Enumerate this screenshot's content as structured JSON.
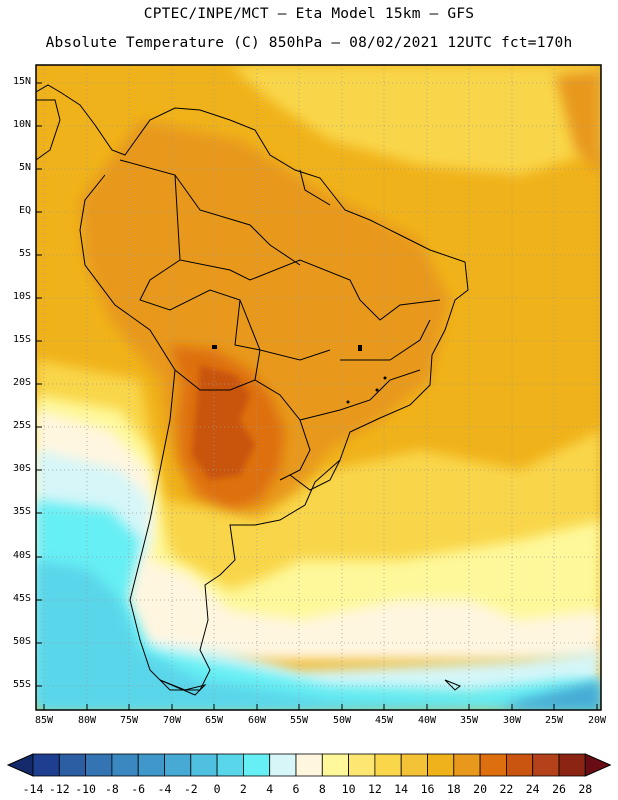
{
  "header": {
    "line1": "CPTEC/INPE/MCT –  Eta Model 15km – GFS",
    "line2": "Absolute Temperature (C) 850hPa – 08/02/2021 12UTC fct=170h"
  },
  "axes": {
    "lat_labels": [
      "15N",
      "10N",
      "5N",
      "EQ",
      "5S",
      "10S",
      "15S",
      "20S",
      "25S",
      "30S",
      "35S",
      "40S",
      "45S",
      "50S",
      "55S"
    ],
    "lon_labels": [
      "85W",
      "80W",
      "75W",
      "70W",
      "65W",
      "60W",
      "55W",
      "50W",
      "45W",
      "40W",
      "35W",
      "30W",
      "25W",
      "20W"
    ]
  },
  "colorbar": {
    "labels": [
      "-14",
      "-12",
      "-10",
      "-8",
      "-6",
      "-4",
      "-2",
      "0",
      "2",
      "4",
      "6",
      "8",
      "10",
      "12",
      "14",
      "16",
      "18",
      "20",
      "22",
      "24",
      "26",
      "28"
    ],
    "colors": [
      "#1e3f8f",
      "#2c5ea3",
      "#3574b3",
      "#3b87bf",
      "#3f98c9",
      "#46aad4",
      "#4fc0e0",
      "#5ad6ea",
      "#66eff4",
      "#d6f6f8",
      "#fff6e0",
      "#fef89a",
      "#fde772",
      "#f9d64a",
      "#f3c237",
      "#f0b21a",
      "#e8991c",
      "#de6f0e",
      "#c95510",
      "#b3421a",
      "#8b2412"
    ],
    "arrow_left_color": "#152a6b",
    "arrow_right_color": "#6a0c14"
  },
  "colors": {
    "warm_bg": "#f0b21a",
    "hot": "#e8991c",
    "hotter": "#de6f0e",
    "hottest": "#c95510",
    "mild": "#f9d64a",
    "cool_yellow": "#fef89a",
    "cream": "#fff6e0",
    "pale_cyan": "#d6f6f8",
    "cyan": "#66eff4",
    "light_blue": "#5ad6ea",
    "blue": "#46aad4"
  }
}
